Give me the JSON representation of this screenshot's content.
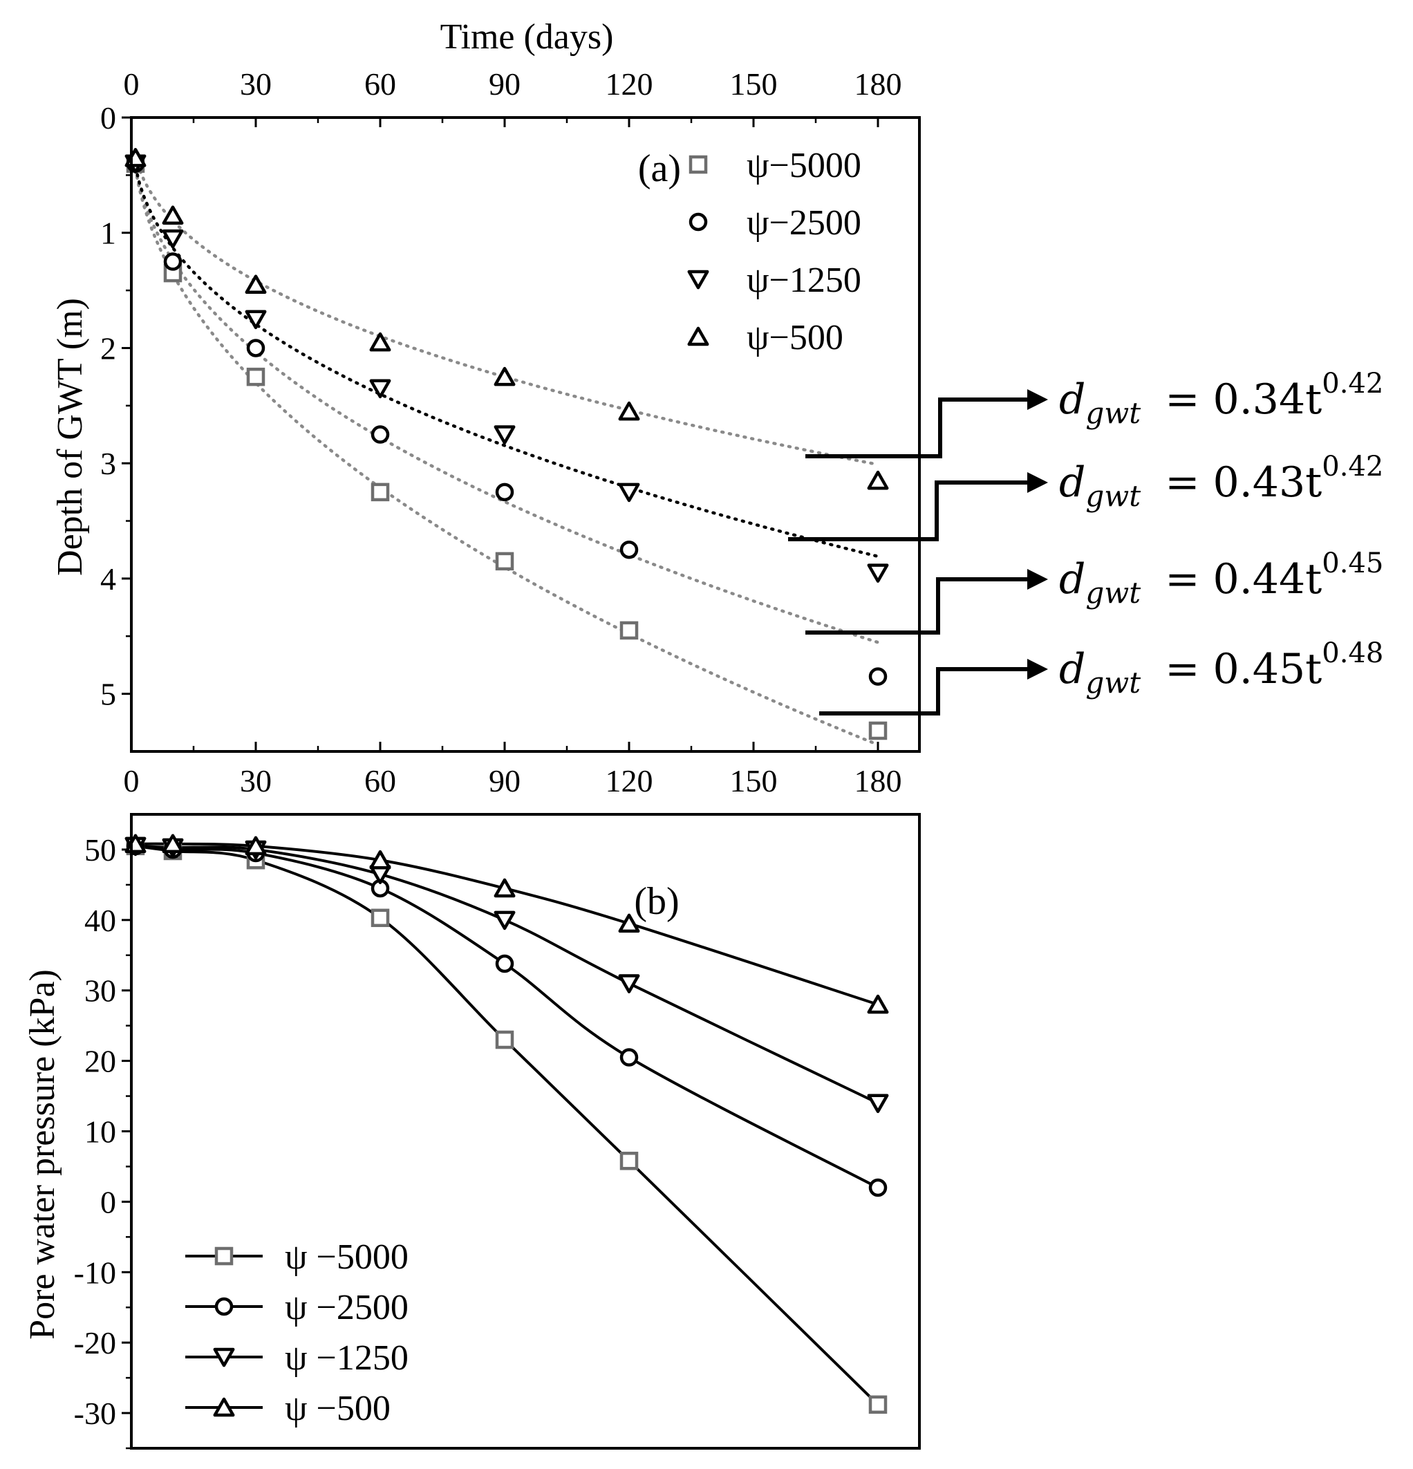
{
  "colors": {
    "ink": "#000000",
    "gray": "#6e6e6e",
    "bg": "#ffffff"
  },
  "chart_data": [
    {
      "panel_label": "(a)",
      "type": "scatter",
      "title": "",
      "xlabel": "Time (days)",
      "ylabel": "Depth of GWT (m)",
      "xlim": [
        0,
        190
      ],
      "ylim": [
        0,
        5.5
      ],
      "y_inverted": true,
      "x_axis_position": "top and bottom",
      "xticks": [
        0,
        30,
        60,
        90,
        120,
        150,
        180
      ],
      "xtick_labels": [
        "0",
        "30",
        "60",
        "90",
        "120",
        "150",
        "180"
      ],
      "yticks": [
        0,
        1,
        2,
        3,
        4,
        5
      ],
      "ytick_labels": [
        "0",
        "1",
        "2",
        "3",
        "4",
        "5"
      ],
      "legend_placement": "top-right",
      "series": [
        {
          "name": "ψ−5000",
          "marker": "square",
          "color": "#6e6e6e",
          "x": [
            1,
            10,
            30,
            60,
            90,
            120,
            180
          ],
          "y": [
            0.4,
            1.35,
            2.25,
            3.25,
            3.85,
            4.45,
            5.32
          ],
          "fit": {
            "coef": 0.45,
            "exp": 0.48,
            "color": "#8a8a8a"
          },
          "equation": {
            "base": "d",
            "sub": "gwt",
            "rhs": "= 0.45t",
            "sup": "0.48"
          }
        },
        {
          "name": "ψ−2500",
          "marker": "circle",
          "color": "#000000",
          "x": [
            1,
            10,
            30,
            60,
            90,
            120,
            180
          ],
          "y": [
            0.4,
            1.25,
            2.0,
            2.75,
            3.25,
            3.75,
            4.85
          ],
          "fit": {
            "coef": 0.44,
            "exp": 0.45,
            "color": "#8a8a8a"
          },
          "equation": {
            "base": "d",
            "sub": "gwt",
            "rhs": "= 0.44t",
            "sup": "0.45"
          }
        },
        {
          "name": "ψ−1250",
          "marker": "triangle-down",
          "color": "#000000",
          "x": [
            1,
            10,
            30,
            60,
            90,
            120,
            180
          ],
          "y": [
            0.4,
            1.05,
            1.75,
            2.35,
            2.75,
            3.25,
            3.95
          ],
          "fit": {
            "coef": 0.43,
            "exp": 0.42,
            "color": "#000000"
          },
          "equation": {
            "base": "d",
            "sub": "gwt",
            "rhs": "= 0.43t",
            "sup": "0.42"
          }
        },
        {
          "name": "ψ−500",
          "marker": "triangle-up",
          "color": "#000000",
          "x": [
            1,
            10,
            30,
            60,
            90,
            120,
            180
          ],
          "y": [
            0.35,
            0.85,
            1.45,
            1.95,
            2.25,
            2.55,
            3.15
          ],
          "fit": {
            "coef": 0.34,
            "exp": 0.42,
            "color": "#8a8a8a"
          },
          "equation": {
            "base": "d",
            "sub": "gwt",
            "rhs": "= 0.34t",
            "sup": "0.42"
          }
        }
      ]
    },
    {
      "panel_label": "(b)",
      "type": "line",
      "title": "",
      "xlabel": "",
      "ylabel": "Pore water pressure (kPa)",
      "xlim": [
        0,
        190
      ],
      "ylim": [
        -35,
        55
      ],
      "yticks": [
        50,
        40,
        30,
        20,
        10,
        0,
        -10,
        -20,
        -30
      ],
      "ytick_labels": [
        "50",
        "40",
        "30",
        "20",
        "10",
        "0",
        "-10",
        "-20",
        "-30"
      ],
      "legend_placement": "bottom-left",
      "series": [
        {
          "name": "ψ −5000",
          "marker": "square",
          "color": "#6e6e6e",
          "x": [
            1,
            10,
            30,
            60,
            90,
            120,
            180
          ],
          "y": [
            50.5,
            49.8,
            48.5,
            40.3,
            23.0,
            5.8,
            -28.8
          ]
        },
        {
          "name": "ψ −2500",
          "marker": "circle",
          "color": "#000000",
          "x": [
            1,
            10,
            30,
            60,
            90,
            120,
            180
          ],
          "y": [
            50.5,
            50.0,
            49.5,
            44.5,
            33.8,
            20.5,
            2.0
          ]
        },
        {
          "name": "ψ −1250",
          "marker": "triangle-down",
          "color": "#000000",
          "x": [
            1,
            10,
            30,
            60,
            90,
            120,
            180
          ],
          "y": [
            50.5,
            50.3,
            50.0,
            46.5,
            40.0,
            31.0,
            14.0
          ]
        },
        {
          "name": "ψ −500",
          "marker": "triangle-up",
          "color": "#000000",
          "x": [
            1,
            10,
            30,
            60,
            90,
            120,
            180
          ],
          "y": [
            50.8,
            50.8,
            50.5,
            48.5,
            44.5,
            39.5,
            28.0
          ]
        }
      ]
    }
  ]
}
